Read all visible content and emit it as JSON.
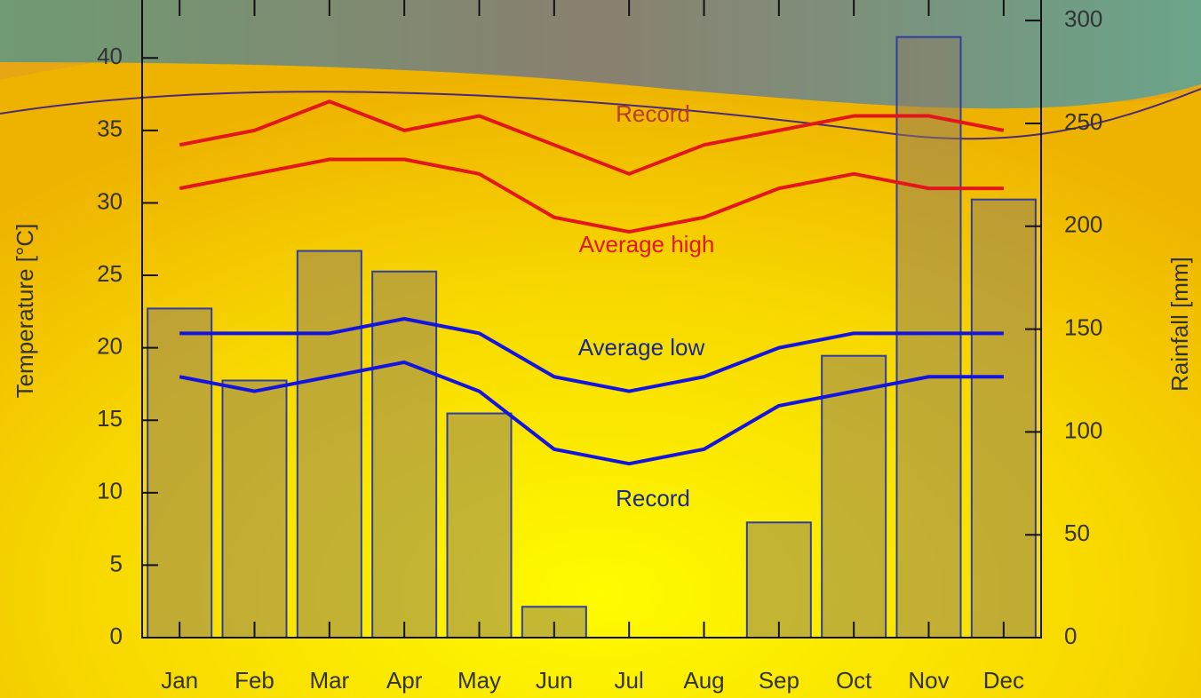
{
  "chart_data": {
    "type": "line",
    "categories": [
      "Jan",
      "Feb",
      "Mar",
      "Apr",
      "May",
      "Jun",
      "Jul",
      "Aug",
      "Sep",
      "Oct",
      "Nov",
      "Dec"
    ],
    "ylabel": "Temperature [°C]",
    "y2label": "Rainfall [mm]",
    "ylim": [
      0,
      44
    ],
    "yticks": [
      0,
      5,
      10,
      15,
      20,
      25,
      30,
      35,
      40
    ],
    "y2lim": [
      0,
      310
    ],
    "y2ticks": [
      0,
      50,
      100,
      150,
      200,
      250,
      300
    ],
    "series": [
      {
        "name": "Record",
        "color": "#e3161c",
        "label_color": "#b5402a",
        "values": [
          34,
          35,
          37,
          35,
          36,
          34,
          32,
          34,
          35,
          36,
          36,
          35
        ]
      },
      {
        "name": "Average high",
        "color": "#e3161c",
        "label_color": "#e3161c",
        "values": [
          31,
          32,
          33,
          33,
          32,
          29,
          28,
          29,
          31,
          32,
          31,
          31
        ]
      },
      {
        "name": "Average low",
        "color": "#1414e0",
        "label_color": "#1a2a8a",
        "values": [
          21,
          21,
          21,
          22,
          21,
          18,
          17,
          18,
          20,
          21,
          21,
          21
        ]
      },
      {
        "name": "Record",
        "color": "#1414e0",
        "label_color": "#1a2a8a",
        "values": [
          18,
          17,
          18,
          19,
          17,
          13,
          12,
          13,
          16,
          17,
          18,
          18
        ]
      }
    ],
    "bars": {
      "type": "bar",
      "axis": "y2",
      "color": "#8a7a66",
      "values": [
        160,
        125,
        188,
        178,
        109,
        15,
        0,
        0,
        56,
        137,
        292,
        213
      ]
    }
  }
}
